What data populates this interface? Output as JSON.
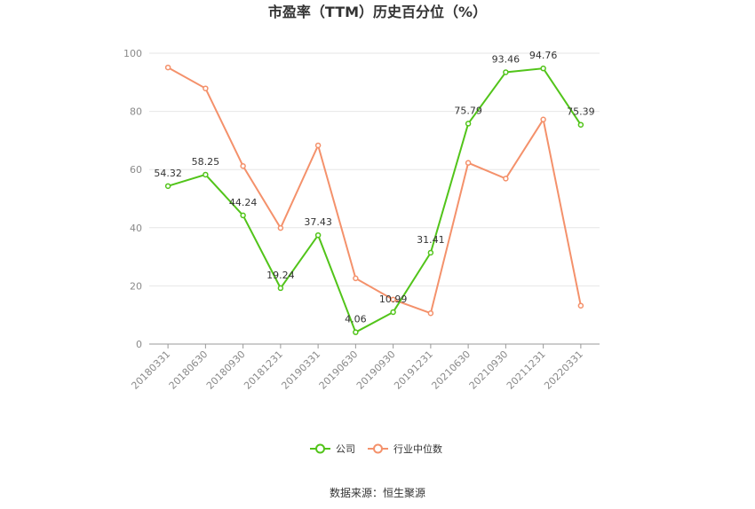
{
  "chart_data": {
    "type": "line",
    "title": "市盈率（TTM）历史百分位（%）",
    "categories": [
      "20180331",
      "20180630",
      "20180930",
      "20181231",
      "20190331",
      "20190630",
      "20190930",
      "20191231",
      "20210630",
      "20210930",
      "20211231",
      "20220331"
    ],
    "series": [
      {
        "name": "公司",
        "color": "#52c41a",
        "values": [
          54.32,
          58.25,
          44.24,
          19.24,
          37.43,
          4.06,
          10.99,
          31.41,
          75.79,
          93.46,
          94.76,
          75.39
        ],
        "labels": [
          "54.32",
          "58.25",
          "44.24",
          "19.24",
          "37.43",
          "4.06",
          "10.99",
          "31.41",
          "75.79",
          "93.46",
          "94.76",
          "75.39"
        ]
      },
      {
        "name": "行业中位数",
        "color": "#f4916b",
        "values": [
          95.1,
          87.9,
          61.2,
          39.9,
          68.3,
          22.6,
          15.3,
          10.6,
          62.3,
          56.9,
          77.2,
          13.2
        ]
      }
    ],
    "yticks": [
      "0",
      "20",
      "40",
      "60",
      "80",
      "100"
    ],
    "ylim": [
      0,
      100
    ],
    "grid": true,
    "legend_position": "bottom"
  },
  "source": "数据来源：恒生聚源"
}
